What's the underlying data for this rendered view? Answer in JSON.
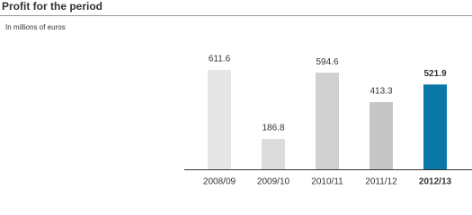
{
  "chart_data": {
    "type": "bar",
    "title": "Profit for the period",
    "subtitle": "In millions of euros",
    "categories": [
      "2008/09",
      "2009/10",
      "2010/11",
      "2011/12",
      "2012/13"
    ],
    "values": [
      611.6,
      186.8,
      594.6,
      413.3,
      521.9
    ],
    "colors": [
      "#e6e6e6",
      "#dcdcdc",
      "#d0d0d0",
      "#c6c6c6",
      "#0b77a8"
    ],
    "highlight": 4,
    "ylim": [
      0,
      700
    ]
  }
}
